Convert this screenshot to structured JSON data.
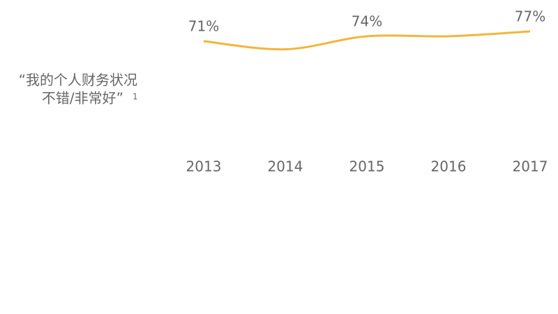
{
  "chart_data": {
    "type": "line",
    "title": [
      "“我的个人财务状况",
      "不错/非常好”"
    ],
    "footnote_mark": "1",
    "categories": [
      "2013",
      "2014",
      "2015",
      "2016",
      "2017"
    ],
    "series": [
      {
        "name": null,
        "color": "#f3b53a",
        "values": [
          71,
          66,
          74,
          74,
          77
        ],
        "value_labels": [
          "71%",
          null,
          "74%",
          null,
          "77%"
        ]
      }
    ],
    "ylim": [
      50,
      80
    ]
  }
}
